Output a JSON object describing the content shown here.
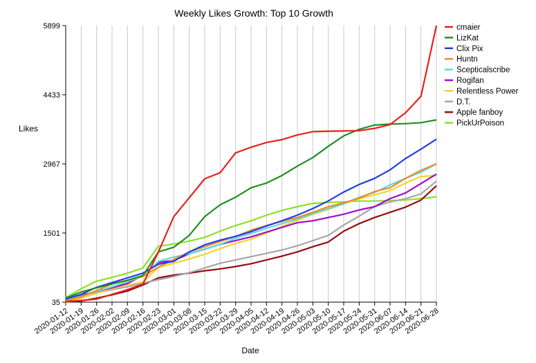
{
  "chart_data": {
    "type": "line",
    "title": "Weekly Likes Growth: Top 10 Growth",
    "xlabel": "Date",
    "ylabel": "Likes",
    "ylim": [
      35,
      5899
    ],
    "yticks": [
      35,
      1501,
      2967,
      4433,
      5899
    ],
    "grid": "vertical",
    "legend_position": "right",
    "x": [
      "2020-01-12",
      "2020-01-19",
      "2020-01-26",
      "2020-02-02",
      "2020-02-09",
      "2020-02-16",
      "2020-02-23",
      "2020-03-01",
      "2020-03-08",
      "2020-03-15",
      "2020-03-22",
      "2020-03-29",
      "2020-04-05",
      "2020-04-12",
      "2020-04-19",
      "2020-04-26",
      "2020-05-03",
      "2020-05-10",
      "2020-05-17",
      "2020-05-24",
      "2020-05-31",
      "2020-06-07",
      "2020-06-14",
      "2020-06-21",
      "2020-06-28"
    ],
    "series": [
      {
        "name": "cmaier",
        "color": "#e3211c",
        "values": [
          50,
          70,
          100,
          200,
          300,
          420,
          1100,
          1850,
          2250,
          2650,
          2780,
          3200,
          3320,
          3420,
          3480,
          3580,
          3650,
          3660,
          3665,
          3670,
          3720,
          3800,
          4050,
          4400,
          5899
        ]
      },
      {
        "name": "LizKat",
        "color": "#1f8f1f",
        "values": [
          120,
          250,
          340,
          420,
          500,
          600,
          1100,
          1200,
          1450,
          1850,
          2100,
          2260,
          2460,
          2560,
          2720,
          2920,
          3100,
          3340,
          3560,
          3700,
          3790,
          3810,
          3820,
          3840,
          3900
        ]
      },
      {
        "name": "Clix Pix",
        "color": "#1f3fe0",
        "values": [
          100,
          200,
          350,
          450,
          550,
          650,
          840,
          900,
          1100,
          1250,
          1350,
          1430,
          1530,
          1650,
          1760,
          1880,
          2020,
          2180,
          2370,
          2530,
          2660,
          2840,
          3080,
          3280,
          3490
        ]
      },
      {
        "name": "Huntn",
        "color": "#f0892a",
        "values": [
          60,
          150,
          280,
          420,
          500,
          580,
          780,
          940,
          1100,
          1210,
          1320,
          1430,
          1560,
          1660,
          1750,
          1830,
          1940,
          2060,
          2140,
          2240,
          2380,
          2460,
          2660,
          2830,
          2967
        ]
      },
      {
        "name": "Scepticalscribe",
        "color": "#5fd8d8",
        "values": [
          80,
          160,
          260,
          360,
          470,
          580,
          900,
          990,
          1060,
          1160,
          1260,
          1390,
          1490,
          1600,
          1700,
          1800,
          1910,
          2020,
          2120,
          2260,
          2360,
          2520,
          2660,
          2790,
          2967
        ]
      },
      {
        "name": "Rogifan",
        "color": "#a00ad0",
        "values": [
          90,
          180,
          260,
          340,
          430,
          600,
          880,
          920,
          1060,
          1160,
          1260,
          1340,
          1420,
          1520,
          1620,
          1720,
          1760,
          1830,
          1900,
          1990,
          2060,
          2230,
          2350,
          2550,
          2750
        ]
      },
      {
        "name": "Relentless Power",
        "color": "#f5d328",
        "values": [
          40,
          120,
          220,
          320,
          400,
          460,
          770,
          860,
          950,
          1050,
          1170,
          1280,
          1370,
          1500,
          1640,
          1770,
          1900,
          2000,
          2120,
          2230,
          2310,
          2400,
          2560,
          2700,
          2720
        ]
      },
      {
        "name": "D.T.",
        "color": "#a6a6a6",
        "values": [
          130,
          190,
          240,
          300,
          360,
          440,
          510,
          580,
          660,
          760,
          860,
          930,
          1000,
          1070,
          1140,
          1230,
          1340,
          1450,
          1670,
          1860,
          2060,
          2160,
          2230,
          2330,
          2600
        ]
      },
      {
        "name": "Apple fanboy",
        "color": "#960c0c",
        "values": [
          40,
          60,
          120,
          190,
          270,
          400,
          550,
          610,
          650,
          700,
          740,
          790,
          850,
          930,
          1010,
          1100,
          1210,
          1310,
          1540,
          1700,
          1830,
          1940,
          2050,
          2200,
          2500
        ]
      },
      {
        "name": "PickUrPoison",
        "color": "#8ce028",
        "values": [
          130,
          320,
          480,
          560,
          650,
          760,
          1220,
          1270,
          1330,
          1410,
          1540,
          1660,
          1760,
          1880,
          1980,
          2060,
          2130,
          2150,
          2160,
          2180,
          2180,
          2190,
          2200,
          2230,
          2270
        ]
      }
    ]
  }
}
